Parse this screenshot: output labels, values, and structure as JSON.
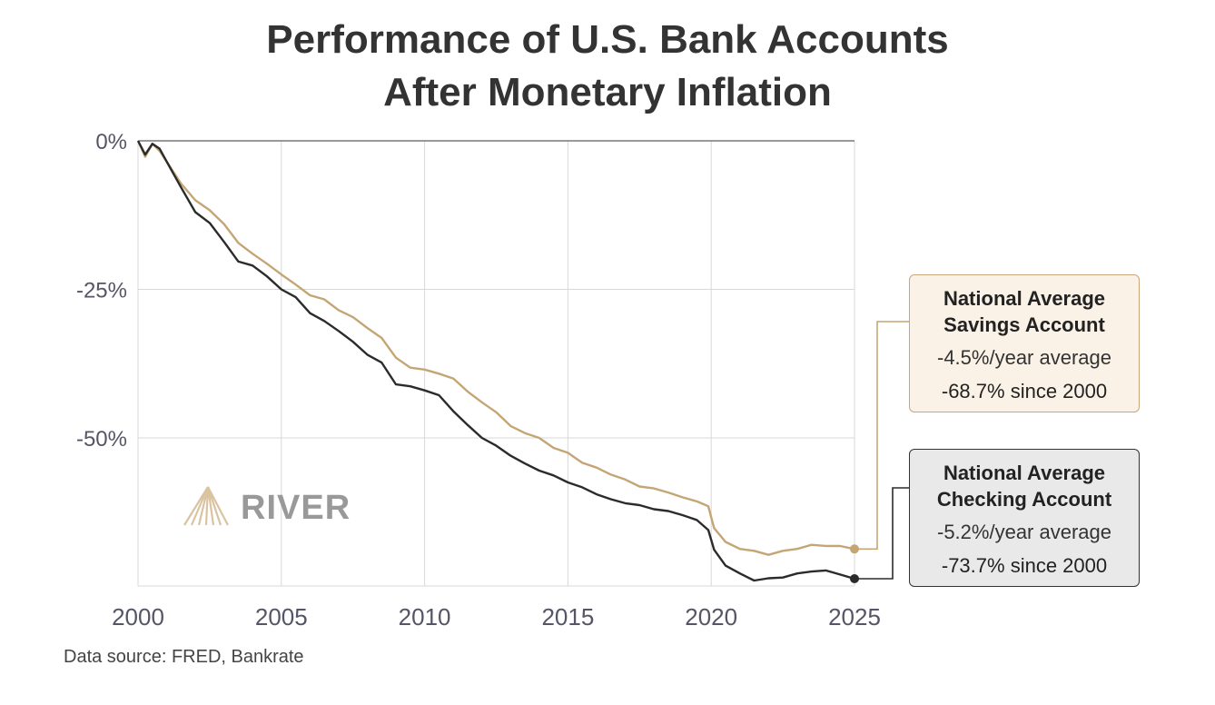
{
  "title": {
    "line1": "Performance of U.S. Bank Accounts",
    "line2": "After Monetary Inflation"
  },
  "source": "Data source: FRED, Bankrate",
  "logo_text": "RIVER",
  "colors": {
    "savings": "#c4a675",
    "checking": "#2b2b2b",
    "grid": "#d8d8d8",
    "axis": "#333333"
  },
  "callouts": {
    "savings": {
      "name_line1": "National Average",
      "name_line2": "Savings Account",
      "rate": "-4.5%/year average",
      "total": "-68.7% since 2000"
    },
    "checking": {
      "name_line1": "National Average",
      "name_line2": "Checking Account",
      "rate": "-5.2%/year average",
      "total": "-73.7% since 2000"
    }
  },
  "chart_data": {
    "type": "line",
    "title": "Performance of U.S. Bank Accounts After Monetary Inflation",
    "xlabel": "",
    "ylabel": "",
    "xlim": [
      2000,
      2025
    ],
    "ylim": [
      -75,
      0
    ],
    "x_ticks": [
      2000,
      2005,
      2010,
      2015,
      2020,
      2025
    ],
    "x_tick_labels": [
      "2000",
      "2005",
      "2010",
      "2015",
      "2020",
      "2025"
    ],
    "y_ticks": [
      0,
      -25,
      -50
    ],
    "y_tick_labels": [
      "0%",
      "-25%",
      "-50%"
    ],
    "grid": true,
    "x": [
      2000,
      2000.25,
      2000.5,
      2000.75,
      2001,
      2001.5,
      2002,
      2002.5,
      2003,
      2003.5,
      2004,
      2004.5,
      2005,
      2005.5,
      2006,
      2006.5,
      2007,
      2007.5,
      2008,
      2008.5,
      2009,
      2009.5,
      2010,
      2010.5,
      2011,
      2011.5,
      2012,
      2012.5,
      2013,
      2013.5,
      2014,
      2014.5,
      2015,
      2015.5,
      2016,
      2016.5,
      2017,
      2017.5,
      2018,
      2018.5,
      2019,
      2019.5,
      2019.9,
      2020.1,
      2020.5,
      2021,
      2021.5,
      2022,
      2022.5,
      2023,
      2023.5,
      2024,
      2024.5,
      2025
    ],
    "series": [
      {
        "name": "National Average Savings Account",
        "values": [
          0,
          -2.5,
          -0.5,
          -1.5,
          -3.5,
          -7,
          -10,
          -11.5,
          -14,
          -17,
          -19,
          -20.5,
          -22.5,
          -24,
          -26,
          -26.5,
          -28.5,
          -29.5,
          -31.5,
          -33,
          -36.5,
          -38,
          -38.5,
          -39,
          -40,
          -42,
          -44,
          -45.5,
          -48,
          -49,
          -50,
          -51.5,
          -52.5,
          -54,
          -55,
          -56,
          -57,
          -58,
          -58.5,
          -59,
          -60,
          -60.5,
          -61.5,
          -65,
          -67.5,
          -68.5,
          -69,
          -69.5,
          -69,
          -68.5,
          -68,
          -68,
          -68.2,
          -68.7
        ]
      },
      {
        "name": "National Average Checking Account",
        "values": [
          0,
          -2.5,
          -0.5,
          -1.5,
          -3.5,
          -8,
          -12,
          -14,
          -17,
          -20.5,
          -21,
          -23,
          -25,
          -26.5,
          -29,
          -30.5,
          -32,
          -34,
          -36,
          -37.5,
          -41,
          -41.5,
          -42,
          -43,
          -45.5,
          -48,
          -50,
          -51.5,
          -53,
          -54.5,
          -55.5,
          -56.5,
          -57.5,
          -58.5,
          -59.5,
          -60.5,
          -61,
          -61.5,
          -62,
          -62.5,
          -63,
          -64,
          -65.5,
          -69,
          -71.5,
          -73,
          -74,
          -73.8,
          -73.5,
          -73,
          -72.5,
          -72.5,
          -73,
          -73.7
        ]
      }
    ],
    "end_labels": [
      {
        "series": "National Average Savings Account",
        "value": -68.7
      },
      {
        "series": "National Average Checking Account",
        "value": -73.7
      }
    ]
  }
}
